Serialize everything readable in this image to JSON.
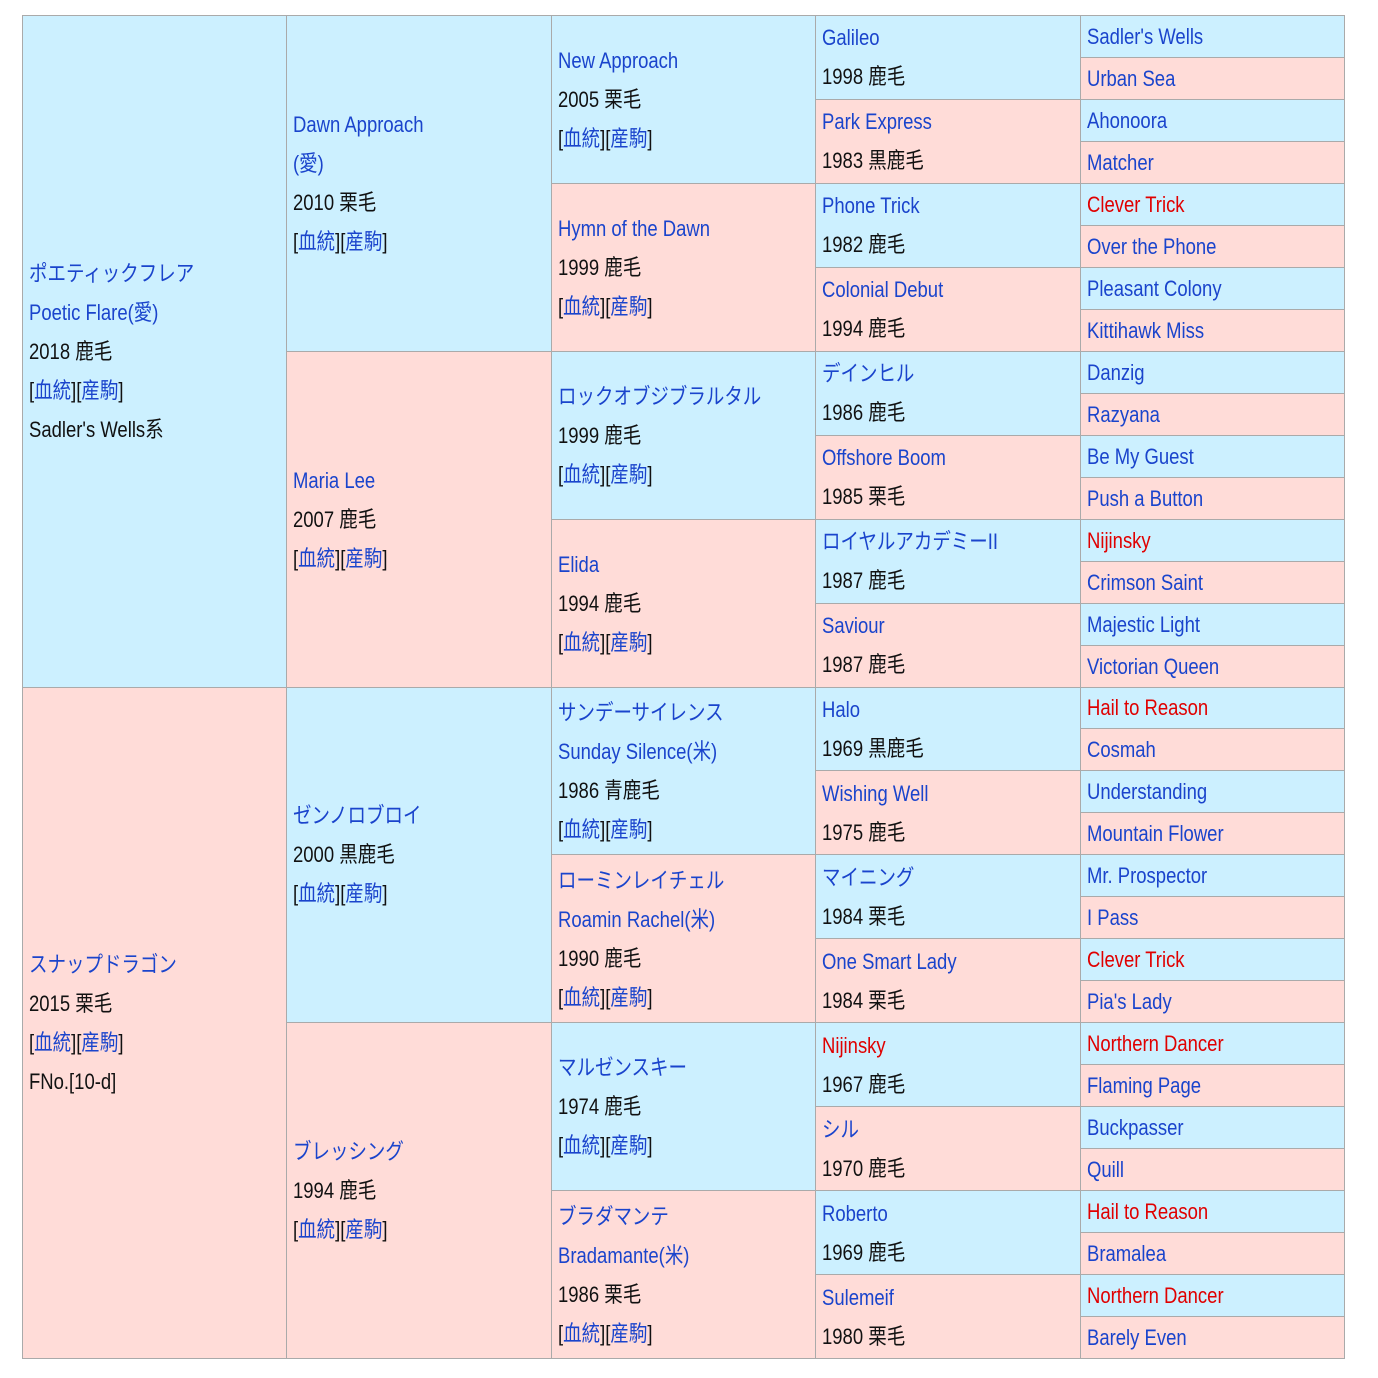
{
  "generations": [
    [
      {
        "names": [
          "ポエティックフレア",
          "Poetic Flare(愛)"
        ],
        "info": "2018 鹿毛",
        "links": [
          "[",
          "血統",
          "][",
          "産駒",
          "]"
        ],
        "note": "Sadler's Wells系"
      },
      {
        "names": [
          "スナップドラゴン"
        ],
        "info": "2015 栗毛",
        "links": [
          "[",
          "血統",
          "][",
          "産駒",
          "]"
        ],
        "note": "FNo.[10-d]"
      }
    ],
    [
      {
        "names": [
          "Dawn Approach",
          "(愛)"
        ],
        "info": "2010 栗毛",
        "links": [
          "[",
          "血統",
          "][",
          "産駒",
          "]"
        ]
      },
      {
        "names": [
          "Maria Lee"
        ],
        "info": "2007 鹿毛",
        "links": [
          "[",
          "血統",
          "][",
          "産駒",
          "]"
        ]
      },
      {
        "names": [
          "ゼンノロブロイ"
        ],
        "info": "2000 黒鹿毛",
        "links": [
          "[",
          "血統",
          "][",
          "産駒",
          "]"
        ]
      },
      {
        "names": [
          "ブレッシング"
        ],
        "info": "1994 鹿毛",
        "links": [
          "[",
          "血統",
          "][",
          "産駒",
          "]"
        ]
      }
    ],
    [
      {
        "names": [
          "New Approach"
        ],
        "info": "2005 栗毛",
        "links": [
          "[",
          "血統",
          "][",
          "産駒",
          "]"
        ]
      },
      {
        "names": [
          "Hymn of the Dawn"
        ],
        "info": "1999 鹿毛",
        "links": [
          "[",
          "血統",
          "][",
          "産駒",
          "]"
        ]
      },
      {
        "names": [
          "ロックオブジブラルタル"
        ],
        "info": "1999 鹿毛",
        "links": [
          "[",
          "血統",
          "][",
          "産駒",
          "]"
        ]
      },
      {
        "names": [
          "Elida"
        ],
        "info": "1994 鹿毛",
        "links": [
          "[",
          "血統",
          "][",
          "産駒",
          "]"
        ]
      },
      {
        "names": [
          "サンデーサイレンス",
          "Sunday Silence(米)"
        ],
        "info": "1986 青鹿毛",
        "links": [
          "[",
          "血統",
          "][",
          "産駒",
          "]"
        ]
      },
      {
        "names": [
          "ローミンレイチェル",
          "Roamin Rachel(米)"
        ],
        "info": "1990 鹿毛",
        "links": [
          "[",
          "血統",
          "][",
          "産駒",
          "]"
        ]
      },
      {
        "names": [
          "マルゼンスキー"
        ],
        "info": "1974 鹿毛",
        "links": [
          "[",
          "血統",
          "][",
          "産駒",
          "]"
        ]
      },
      {
        "names": [
          "ブラダマンテ",
          "Bradamante(米)"
        ],
        "info": "1986 栗毛",
        "links": [
          "[",
          "血統",
          "][",
          "産駒",
          "]"
        ]
      }
    ],
    [
      {
        "names": [
          "Galileo"
        ],
        "info": "1998 鹿毛"
      },
      {
        "names": [
          "Park Express"
        ],
        "info": "1983 黒鹿毛"
      },
      {
        "names": [
          "Phone Trick"
        ],
        "info": "1982 鹿毛"
      },
      {
        "names": [
          "Colonial Debut"
        ],
        "info": "1994 鹿毛"
      },
      {
        "names": [
          "デインヒル"
        ],
        "info": "1986 鹿毛"
      },
      {
        "names": [
          "Offshore Boom"
        ],
        "info": "1985 栗毛"
      },
      {
        "names": [
          "ロイヤルアカデミーII"
        ],
        "info": "1987 鹿毛"
      },
      {
        "names": [
          "Saviour"
        ],
        "info": "1987 鹿毛"
      },
      {
        "names": [
          "Halo"
        ],
        "info": "1969 黒鹿毛"
      },
      {
        "names": [
          "Wishing Well"
        ],
        "info": "1975 鹿毛"
      },
      {
        "names": [
          "マイニング"
        ],
        "info": "1984 栗毛"
      },
      {
        "names": [
          "One Smart Lady"
        ],
        "info": "1984 栗毛"
      },
      {
        "names": [
          "Nijinsky"
        ],
        "info": "1967 鹿毛",
        "color": "#e00000"
      },
      {
        "names": [
          "シル"
        ],
        "info": "1970 鹿毛"
      },
      {
        "names": [
          "Roberto"
        ],
        "info": "1969 鹿毛"
      },
      {
        "names": [
          "Sulemeif"
        ],
        "info": "1980 栗毛"
      }
    ],
    [
      {
        "names": [
          "Sadler's Wells"
        ]
      },
      {
        "names": [
          "Urban Sea"
        ]
      },
      {
        "names": [
          "Ahonoora"
        ]
      },
      {
        "names": [
          "Matcher"
        ]
      },
      {
        "names": [
          "Clever Trick"
        ],
        "color": "#e00000"
      },
      {
        "names": [
          "Over the Phone"
        ]
      },
      {
        "names": [
          "Pleasant Colony"
        ]
      },
      {
        "names": [
          "Kittihawk Miss"
        ]
      },
      {
        "names": [
          "Danzig"
        ]
      },
      {
        "names": [
          "Razyana"
        ]
      },
      {
        "names": [
          "Be My Guest"
        ]
      },
      {
        "names": [
          "Push a Button"
        ]
      },
      {
        "names": [
          "Nijinsky"
        ],
        "color": "#e00000"
      },
      {
        "names": [
          "Crimson Saint"
        ]
      },
      {
        "names": [
          "Majestic Light"
        ]
      },
      {
        "names": [
          "Victorian Queen"
        ]
      },
      {
        "names": [
          "Hail to Reason"
        ],
        "color": "#e00000"
      },
      {
        "names": [
          "Cosmah"
        ]
      },
      {
        "names": [
          "Understanding"
        ]
      },
      {
        "names": [
          "Mountain Flower"
        ]
      },
      {
        "names": [
          "Mr. Prospector"
        ]
      },
      {
        "names": [
          "I Pass"
        ]
      },
      {
        "names": [
          "Clever Trick"
        ],
        "color": "#e00000"
      },
      {
        "names": [
          "Pia's Lady"
        ]
      },
      {
        "names": [
          "Northern Dancer"
        ],
        "color": "#e00000"
      },
      {
        "names": [
          "Flaming Page"
        ]
      },
      {
        "names": [
          "Buckpasser"
        ]
      },
      {
        "names": [
          "Quill"
        ]
      },
      {
        "names": [
          "Hail to Reason"
        ],
        "color": "#e00000"
      },
      {
        "names": [
          "Bramalea"
        ]
      },
      {
        "names": [
          "Northern Dancer"
        ],
        "color": "#e00000"
      },
      {
        "names": [
          "Barely Even"
        ]
      }
    ]
  ]
}
